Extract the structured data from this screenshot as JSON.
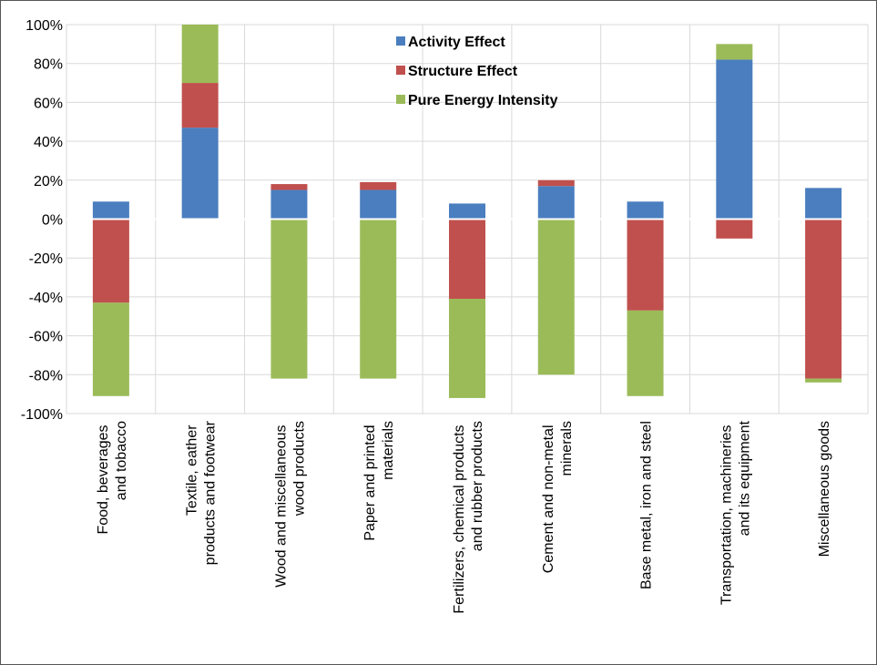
{
  "chart_data": {
    "type": "stacked-bar",
    "categories": [
      "Food, beverages\nand tobacco",
      "Textile,  eather\nproducts and footwear",
      "Wood and miscellaneous\nwood products",
      "Paper and printed\nmaterials",
      "Fertilizers, chemical products\nand rubber products",
      "Cement and non-metal\nminerals",
      "Base metal, iron and steel",
      "Transportation, machineries\nand its equipment",
      "Miscellaneous goods"
    ],
    "series": [
      {
        "name": "Activity Effect",
        "color": "#4a7ebf",
        "values": [
          9,
          47,
          15,
          15,
          8,
          17,
          9,
          82,
          16
        ]
      },
      {
        "name": "Structure Effect",
        "color": "#c0504d",
        "values": [
          -43,
          23,
          3,
          4,
          -41,
          3,
          -47,
          -10,
          -82
        ]
      },
      {
        "name": "Pure Energy Intensity",
        "color": "#9bbb59",
        "values": [
          -48,
          30,
          -82,
          -82,
          -51,
          -80,
          -44,
          8,
          -2
        ]
      }
    ],
    "ylim": [
      -100,
      100
    ],
    "yticks": [
      {
        "value": -100,
        "label": "-100%"
      },
      {
        "value": -80,
        "label": "-80%"
      },
      {
        "value": -60,
        "label": "-60%"
      },
      {
        "value": -40,
        "label": "-40%"
      },
      {
        "value": -20,
        "label": "-20%"
      },
      {
        "value": 0,
        "label": "0%"
      },
      {
        "value": 20,
        "label": "20%"
      },
      {
        "value": 40,
        "label": "40%"
      },
      {
        "value": 60,
        "label": "60%"
      },
      {
        "value": 80,
        "label": "80%"
      },
      {
        "value": 100,
        "label": "100%"
      }
    ],
    "grid": true,
    "legend": "top"
  }
}
